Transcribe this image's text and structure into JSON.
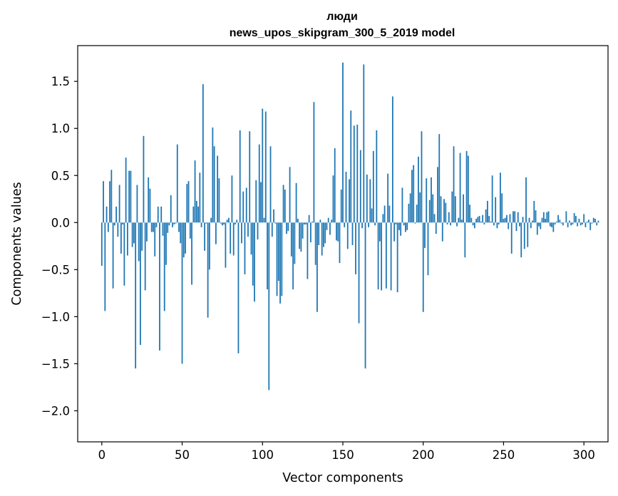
{
  "chart_data": {
    "type": "bar",
    "title": "люди",
    "subtitle": "news_upos_skipgram_300_5_2019 model",
    "xlabel": "Vector components",
    "ylabel": "Components values",
    "xlim": [
      -15,
      315
    ],
    "ylim": [
      -2.33,
      1.88
    ],
    "xticks": [
      0,
      50,
      100,
      150,
      200,
      250,
      300
    ],
    "yticks": [
      -2.0,
      -1.5,
      -1.0,
      -0.5,
      0.0,
      0.5,
      1.0,
      1.5
    ],
    "ytick_labels": [
      "−2.0",
      "−1.5",
      "−1.0",
      "−0.5",
      "0.0",
      "0.5",
      "1.0",
      "1.5"
    ],
    "xtick_labels": [
      "0",
      "50",
      "100",
      "150",
      "200",
      "250",
      "300"
    ],
    "bar_color": "#1f77b4",
    "grid": false,
    "values": [
      -0.46,
      0.44,
      -0.94,
      0.17,
      -0.1,
      0.44,
      0.56,
      -0.7,
      -0.03,
      0.17,
      -0.15,
      0.4,
      -0.33,
      -0.02,
      -0.67,
      0.69,
      -0.35,
      0.55,
      0.55,
      -0.26,
      -0.22,
      -1.55,
      0.4,
      -0.41,
      -1.3,
      -0.3,
      0.92,
      -0.72,
      -0.2,
      0.48,
      0.36,
      -0.1,
      -0.1,
      -0.36,
      -0.05,
      0.17,
      -1.36,
      0.17,
      -0.14,
      -0.94,
      -0.45,
      -0.11,
      -0.03,
      0.29,
      -0.05,
      -0.02,
      -0.01,
      0.83,
      -0.1,
      -0.22,
      -1.5,
      -0.37,
      -0.33,
      0.41,
      0.44,
      -0.17,
      -0.66,
      0.17,
      0.66,
      0.23,
      0.17,
      0.53,
      -0.05,
      1.47,
      -0.3,
      -0.01,
      -1.01,
      -0.5,
      0.05,
      1.01,
      0.81,
      -0.23,
      0.71,
      0.47,
      -0.01,
      -0.03,
      -0.02,
      -0.48,
      0.03,
      0.05,
      -0.33,
      0.5,
      -0.35,
      -0.02,
      0.03,
      -1.39,
      0.98,
      -0.22,
      0.33,
      -0.55,
      0.37,
      -0.15,
      0.97,
      -0.34,
      -0.67,
      -0.84,
      0.45,
      -0.18,
      0.83,
      0.43,
      1.21,
      0.05,
      1.18,
      -0.71,
      -1.78,
      0.81,
      -0.15,
      0.14,
      -0.01,
      -0.78,
      -0.62,
      -0.86,
      -0.78,
      0.4,
      0.35,
      -0.12,
      -0.09,
      0.59,
      -0.36,
      -0.71,
      -0.44,
      0.42,
      0.04,
      -0.28,
      -0.31,
      -0.17,
      -0.02,
      -0.02,
      -0.6,
      0.08,
      -0.21,
      0.01,
      1.28,
      -0.45,
      -0.95,
      -0.24,
      0.03,
      -0.35,
      -0.26,
      -0.22,
      -0.08,
      0.05,
      -0.13,
      0.03,
      0.5,
      0.79,
      -0.19,
      -0.2,
      -0.43,
      0.35,
      1.7,
      -0.05,
      0.54,
      -0.28,
      0.46,
      1.19,
      -0.24,
      1.03,
      -0.55,
      1.04,
      -1.07,
      0.77,
      -0.06,
      1.68,
      -1.55,
      0.51,
      -0.05,
      0.46,
      0.15,
      0.76,
      -0.03,
      0.98,
      -0.71,
      -0.2,
      -0.72,
      0.09,
      0.18,
      -0.7,
      0.52,
      0.18,
      -0.72,
      1.34,
      -0.2,
      -0.02,
      -0.74,
      -0.08,
      -0.14,
      0.37,
      -0.03,
      -0.1,
      -0.08,
      0.2,
      0.31,
      0.56,
      0.61,
      -0.01,
      0.19,
      0.7,
      0.32,
      0.97,
      -0.95,
      -0.27,
      0.47,
      -0.56,
      0.24,
      0.48,
      0.3,
      0.09,
      -0.12,
      0.59,
      0.94,
      0.28,
      -0.2,
      0.25,
      0.21,
      -0.02,
      0.11,
      -0.03,
      0.33,
      0.81,
      0.28,
      -0.04,
      0.05,
      0.74,
      0.03,
      0.3,
      -0.37,
      0.76,
      0.71,
      0.19,
      0.05,
      -0.03,
      -0.06,
      0.04,
      0.06,
      0.07,
      0.01,
      0.08,
      -0.02,
      0.14,
      0.23,
      0.07,
      0.01,
      0.5,
      -0.03,
      0.27,
      -0.06,
      -0.02,
      0.53,
      0.31,
      0.04,
      0.05,
      0.08,
      -0.07,
      0.09,
      -0.33,
      0.12,
      0.12,
      -0.09,
      0.11,
      -0.04,
      -0.37,
      0.06,
      -0.28,
      0.48,
      -0.26,
      0.05,
      -0.06,
      0.02,
      0.23,
      0.13,
      -0.13,
      -0.04,
      -0.07,
      0.05,
      0.11,
      0.04,
      0.11,
      0.12,
      -0.04,
      -0.05,
      -0.1,
      -0.02,
      0.01,
      0.08,
      0.03,
      -0.01,
      -0.03,
      0.0,
      0.12,
      -0.05,
      0.02,
      -0.03,
      -0.02,
      0.1,
      0.07,
      -0.04,
      0.04,
      -0.03,
      -0.02,
      0.09,
      -0.05,
      0.01,
      0.03,
      -0.08,
      -0.01,
      0.05,
      0.04,
      -0.03,
      0.02
    ]
  }
}
